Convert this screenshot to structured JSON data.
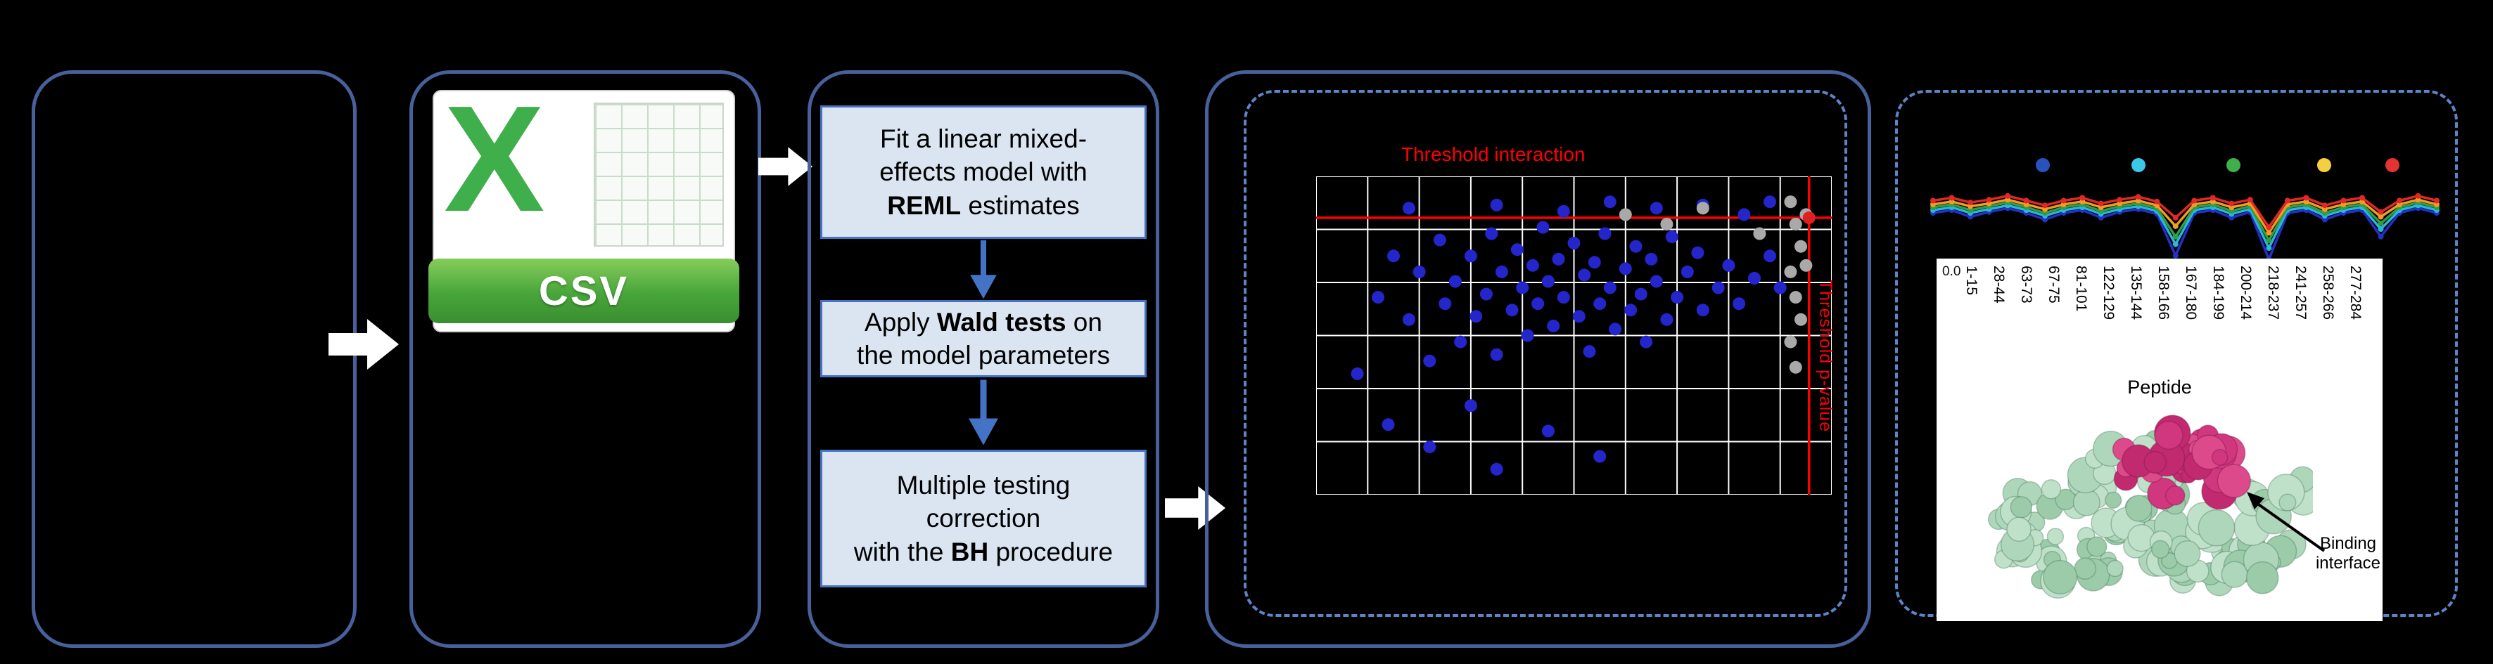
{
  "style": {
    "panel_border": "#46619b",
    "dashed_border": "#5d84c9",
    "flow_accent": "#4472c4",
    "box_fill": "#dbe5f2"
  },
  "csv_icon": {
    "letter": "X",
    "label": "CSV"
  },
  "pipeline_boxes": [
    {
      "pre": "Fit a linear mixed-\neffects model with\n",
      "bold": "REML",
      "post": " estimates"
    },
    {
      "pre": "Apply ",
      "bold": "Wald tests",
      "post": " on\nthe model parameters"
    },
    {
      "pre": "Multiple testing\ncorrection\nwith the ",
      "bold": "BH",
      "post": " procedure"
    }
  ],
  "scatter_plot": {
    "type": "scatter",
    "title_threshold_interaction": "Threshold interaction",
    "label_threshold_pvalue": "Threshold p-value",
    "grid": {
      "cols": 10,
      "rows": 6
    },
    "thresholds": {
      "hline_pct_y": 13,
      "vline_pct_x": 95.6
    },
    "colors": {
      "point_blue": "#2525cc",
      "point_gray": "#a9a9a9",
      "point_red": "#e02020",
      "threshold": "#ff0000",
      "grid_line": "#ffffff"
    },
    "points_blue": [
      [
        18,
        10
      ],
      [
        35,
        9
      ],
      [
        48,
        11
      ],
      [
        57,
        8
      ],
      [
        66,
        10
      ],
      [
        75,
        9
      ],
      [
        83,
        12
      ],
      [
        88,
        8
      ],
      [
        8,
        62
      ],
      [
        12,
        38
      ],
      [
        15,
        25
      ],
      [
        18,
        45
      ],
      [
        20,
        30
      ],
      [
        22,
        58
      ],
      [
        24,
        20
      ],
      [
        25,
        40
      ],
      [
        27,
        33
      ],
      [
        28,
        52
      ],
      [
        30,
        25
      ],
      [
        31,
        44
      ],
      [
        33,
        37
      ],
      [
        34,
        18
      ],
      [
        35,
        56
      ],
      [
        36,
        30
      ],
      [
        38,
        42
      ],
      [
        39,
        23
      ],
      [
        40,
        35
      ],
      [
        41,
        50
      ],
      [
        42,
        28
      ],
      [
        43,
        40
      ],
      [
        44,
        16
      ],
      [
        45,
        33
      ],
      [
        46,
        47
      ],
      [
        47,
        26
      ],
      [
        48,
        38
      ],
      [
        50,
        21
      ],
      [
        51,
        44
      ],
      [
        52,
        31
      ],
      [
        53,
        55
      ],
      [
        54,
        27
      ],
      [
        55,
        40
      ],
      [
        56,
        18
      ],
      [
        57,
        35
      ],
      [
        58,
        48
      ],
      [
        60,
        29
      ],
      [
        61,
        42
      ],
      [
        62,
        22
      ],
      [
        63,
        37
      ],
      [
        64,
        52
      ],
      [
        65,
        26
      ],
      [
        66,
        33
      ],
      [
        68,
        45
      ],
      [
        69,
        19
      ],
      [
        70,
        38
      ],
      [
        72,
        30
      ],
      [
        74,
        24
      ],
      [
        75,
        42
      ],
      [
        78,
        35
      ],
      [
        80,
        28
      ],
      [
        82,
        40
      ],
      [
        85,
        32
      ],
      [
        88,
        25
      ],
      [
        90,
        35
      ],
      [
        14,
        78
      ],
      [
        22,
        85
      ],
      [
        30,
        72
      ],
      [
        45,
        80
      ],
      [
        55,
        88
      ],
      [
        35,
        92
      ]
    ],
    "points_gray": [
      [
        92,
        8
      ],
      [
        93,
        15
      ],
      [
        94,
        22
      ],
      [
        92,
        30
      ],
      [
        95,
        12
      ],
      [
        93,
        38
      ],
      [
        94,
        45
      ],
      [
        92,
        52
      ],
      [
        95,
        28
      ],
      [
        93,
        60
      ],
      [
        60,
        12
      ],
      [
        68,
        15
      ],
      [
        75,
        10
      ],
      [
        86,
        18
      ]
    ],
    "points_red": [
      [
        95.6,
        13
      ]
    ]
  },
  "uptake_chart": {
    "type": "line",
    "legend_colors": [
      "#2a52be",
      "#3bc8e8",
      "#3faf4c",
      "#f4d03f",
      "#e33434"
    ],
    "series": [
      {
        "name": "blue",
        "color": "#2430c8",
        "values": [
          43,
          40,
          47,
          42,
          38,
          43,
          50,
          43,
          40,
          48,
          42,
          39,
          44,
          88,
          43,
          40,
          48,
          42,
          92,
          43,
          40,
          50,
          43,
          40,
          68,
          43,
          38,
          43
        ]
      },
      {
        "name": "cyan",
        "color": "#29b8d8",
        "values": [
          40,
          37,
          43,
          39,
          35,
          40,
          46,
          40,
          37,
          44,
          39,
          36,
          41,
          76,
          40,
          37,
          44,
          39,
          80,
          40,
          37,
          46,
          40,
          37,
          60,
          40,
          35,
          40
        ]
      },
      {
        "name": "green",
        "color": "#2f9e44",
        "values": [
          37,
          34,
          40,
          36,
          32,
          37,
          43,
          37,
          34,
          41,
          36,
          33,
          38,
          68,
          37,
          34,
          41,
          36,
          72,
          37,
          34,
          43,
          37,
          34,
          54,
          37,
          32,
          37
        ]
      },
      {
        "name": "orange",
        "color": "#f59a23",
        "values": [
          34,
          31,
          36,
          33,
          29,
          34,
          39,
          34,
          31,
          37,
          33,
          30,
          35,
          57,
          34,
          31,
          37,
          33,
          64,
          34,
          31,
          39,
          34,
          31,
          47,
          34,
          29,
          34
        ]
      },
      {
        "name": "red",
        "color": "#e02828",
        "values": [
          30,
          27,
          32,
          29,
          25,
          30,
          35,
          30,
          27,
          33,
          29,
          26,
          31,
          48,
          30,
          27,
          33,
          29,
          58,
          30,
          27,
          35,
          30,
          27,
          42,
          30,
          25,
          30
        ]
      }
    ]
  },
  "peptide_axis": {
    "y_tick": "0.0",
    "x_label": "Peptide",
    "labels": [
      "1-15",
      "28-44",
      "63-73",
      "67-75",
      "81-101",
      "122-129",
      "135-144",
      "158-166",
      "167-180",
      "184-199",
      "200-214",
      "218-237",
      "241-257",
      "258-266",
      "277-284"
    ]
  },
  "protein_figure": {
    "annotation": "Binding interface"
  }
}
